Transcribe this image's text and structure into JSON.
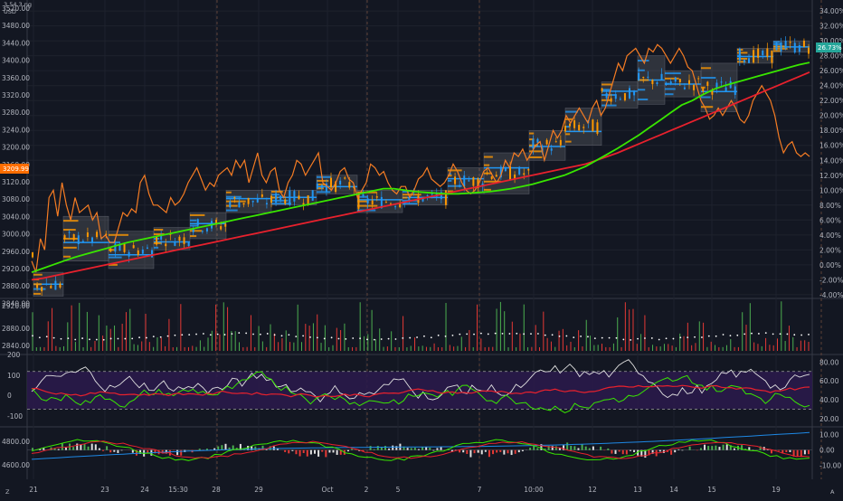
{
  "header": {
    "symbol_label": "3.54.3 ng",
    "currency": "USD"
  },
  "colors": {
    "background": "#131722",
    "grid": "#1e222d",
    "separator": "#363a45",
    "orange_line": "#f57c23",
    "green_ma": "#39e600",
    "red_ma": "#e8212d",
    "candle_up": "#26a69a",
    "candle_blue": "#2196f3",
    "candle_orange": "#ff9800",
    "volume_green": "#4caf50",
    "volume_red": "#e53935",
    "rsi_band": "#2a1a4a",
    "rsi_white": "#e0e0e0",
    "macd_blue": "#1e88e5",
    "badge_orange": "#ff6d00",
    "badge_teal": "#26a69a",
    "session_line": "#5d4037"
  },
  "icons": {
    "bottom_left": "z-icon",
    "bottom_right": "auto-scale-icon"
  },
  "corner_labels": {
    "left": "Z",
    "right": "A"
  },
  "chart_data": [
    {
      "name": "price-panel",
      "type": "line",
      "left_axis_ticks": [
        "3520.00",
        "3480.00",
        "3440.00",
        "3400.00",
        "3360.00",
        "3320.00",
        "3280.00",
        "3240.00",
        "3200.00",
        "3160.00",
        "3120.00",
        "3080.00",
        "3040.00",
        "3000.00",
        "2960.00",
        "2920.00",
        "2880.00",
        "2840.00"
      ],
      "right_axis_ticks": [
        "34.00%",
        "32.00%",
        "30.00%",
        "28.00%",
        "26.00%",
        "24.00%",
        "22.00%",
        "20.00%",
        "18.00%",
        "16.00%",
        "14.00%",
        "12.00%",
        "10.00%",
        "8.00%",
        "6.00%",
        "4.00%",
        "2.00%",
        "0.00%",
        "-2.00%",
        "-4.00%"
      ],
      "ylim_left": [
        2830,
        3535
      ],
      "ylim_right": [
        -4.5,
        34.5
      ],
      "price_badge": "3209.99",
      "percent_badge": "26.73%",
      "series": [
        {
          "key": "orange",
          "values": [
            0.5,
            -1,
            3.5,
            2,
            9,
            10,
            6.5,
            11,
            8,
            6,
            9,
            7,
            7.5,
            8,
            6,
            7,
            3.5,
            4,
            3,
            3,
            5,
            7,
            6.5,
            7.5,
            7,
            11,
            12,
            9.5,
            8,
            8,
            7.5,
            7,
            9,
            8,
            8.5,
            9.5,
            11,
            12,
            13,
            11.5,
            10,
            11,
            10.5,
            12,
            12.5,
            13,
            12,
            14,
            13,
            14,
            11,
            13,
            15,
            12,
            11,
            12.5,
            13,
            10,
            9,
            11,
            12,
            14,
            13.5,
            12,
            13,
            14,
            15,
            11,
            10.5,
            10,
            11,
            12.5,
            13,
            11.5,
            11,
            9,
            10,
            11,
            13.5,
            13,
            12,
            12.5,
            11,
            10,
            9.5,
            10.5,
            10.5,
            9,
            10,
            11.5,
            12,
            13,
            11.5,
            11,
            10.5,
            11,
            12,
            13.5,
            12.5,
            11,
            10,
            9.5,
            10,
            11,
            12.5,
            13,
            12,
            11,
            12,
            14,
            13,
            15,
            14.5,
            15.5,
            14,
            15,
            16,
            16.5,
            14,
            16,
            18,
            17,
            18,
            20,
            19,
            20,
            21,
            20,
            19,
            21,
            22,
            20,
            21,
            23,
            25,
            27,
            26,
            28,
            28.5,
            29,
            28,
            27,
            29,
            28.5,
            29.5,
            29,
            28,
            27,
            28,
            29,
            28,
            26.5,
            26,
            24,
            22,
            21,
            19.5,
            20,
            21,
            20,
            21,
            22,
            21,
            19.5,
            19,
            20,
            22,
            23,
            24,
            23,
            22,
            20,
            17,
            15,
            16,
            16.5,
            15,
            14.5,
            15,
            14.5
          ]
        },
        {
          "key": "green",
          "values": [
            -1,
            -0.5,
            0,
            0.5,
            1,
            1.4,
            1.8,
            2.2,
            2.6,
            3,
            3.3,
            3.6,
            3.9,
            4.2,
            4.5,
            4.8,
            5.1,
            5.4,
            5.7,
            6,
            6.3,
            6.6,
            6.9,
            7.2,
            7.5,
            7.8,
            8.1,
            8.4,
            8.7,
            9,
            9.3,
            9.6,
            9.9,
            10.2,
            10.2,
            10,
            9.8,
            9.7,
            9.6,
            9.5,
            9.5,
            9.6,
            9.7,
            9.8,
            10,
            10.2,
            10.5,
            10.8,
            11.2,
            11.6,
            12,
            12.6,
            13.2,
            14,
            14.8,
            15.6,
            16.5,
            17.4,
            18.4,
            19.4,
            20.4,
            21.4,
            22,
            22.8,
            23.5,
            24,
            24.4,
            24.8,
            25.2,
            25.6,
            26,
            26.4,
            26.8,
            27.1
          ]
        },
        {
          "key": "red",
          "values": [
            -2,
            -1.8,
            -1.5,
            -1.2,
            -0.9,
            -0.6,
            -0.3,
            0,
            0.3,
            0.6,
            0.9,
            1.2,
            1.5,
            1.8,
            2.1,
            2.4,
            2.7,
            3,
            3.3,
            3.6,
            3.9,
            4.2,
            4.5,
            4.8,
            5.1,
            5.4,
            5.7,
            6,
            6.3,
            6.6,
            6.9,
            7.2,
            7.5,
            7.8,
            8.1,
            8.4,
            8.7,
            9,
            9.3,
            9.6,
            9.9,
            10.2,
            10.5,
            10.8,
            11.1,
            11.4,
            11.7,
            12,
            12.3,
            12.6,
            12.9,
            13.2,
            13.5,
            14,
            14.5,
            15,
            15.6,
            16.2,
            16.8,
            17.4,
            18,
            18.6,
            19.2,
            19.8,
            20.4,
            21,
            21.6,
            22.2,
            22.8,
            23.4,
            24,
            24.6,
            25.2,
            25.8
          ]
        }
      ],
      "profile_boxes": [
        {
          "x0": 0.2,
          "x1": 3.5,
          "hi": -1,
          "lo": -4.2
        },
        {
          "x0": 3.5,
          "x1": 8.5,
          "hi": 6.5,
          "lo": 0.5
        },
        {
          "x0": 8.5,
          "x1": 13.5,
          "hi": 4.5,
          "lo": -0.5
        },
        {
          "x0": 13.5,
          "x1": 17.5,
          "hi": 5,
          "lo": 2
        },
        {
          "x0": 17.5,
          "x1": 21.5,
          "hi": 7,
          "lo": 3.5
        },
        {
          "x0": 21.5,
          "x1": 26.5,
          "hi": 10,
          "lo": 7
        },
        {
          "x0": 26.5,
          "x1": 31.5,
          "hi": 10,
          "lo": 8
        },
        {
          "x0": 31.5,
          "x1": 36,
          "hi": 12,
          "lo": 9.5
        },
        {
          "x0": 36,
          "x1": 41,
          "hi": 10,
          "lo": 7
        },
        {
          "x0": 41,
          "x1": 46,
          "hi": 10,
          "lo": 8
        },
        {
          "x0": 46,
          "x1": 50,
          "hi": 13,
          "lo": 9.5
        },
        {
          "x0": 50,
          "x1": 55,
          "hi": 15,
          "lo": 9.5
        },
        {
          "x0": 55,
          "x1": 59,
          "hi": 18,
          "lo": 14
        },
        {
          "x0": 59,
          "x1": 63,
          "hi": 21,
          "lo": 16
        },
        {
          "x0": 63,
          "x1": 67,
          "hi": 24.5,
          "lo": 21
        },
        {
          "x0": 67,
          "x1": 70,
          "hi": 28,
          "lo": 21.5
        },
        {
          "x0": 70,
          "x1": 74,
          "hi": 26,
          "lo": 22.5
        },
        {
          "x0": 74,
          "x1": 78,
          "hi": 27,
          "lo": 20.5
        },
        {
          "x0": 78,
          "x1": 82,
          "hi": 29,
          "lo": 27
        },
        {
          "x0": 82,
          "x1": 86,
          "hi": 30,
          "lo": 28.5
        }
      ]
    },
    {
      "name": "volume-panel",
      "type": "bar",
      "axis_ticks": [
        "2920.00",
        "2880.00",
        "2840.00"
      ],
      "ylim": [
        0,
        1
      ]
    },
    {
      "name": "rsi-panel",
      "type": "line",
      "left_axis_ticks": [
        "200",
        "100",
        "0",
        "-100"
      ],
      "right_axis_ticks": [
        "80.00",
        "60.00",
        "40.00",
        "20.00"
      ],
      "ylim_right": [
        15,
        88
      ],
      "band": [
        30,
        70
      ]
    },
    {
      "name": "macd-panel",
      "type": "bar",
      "left_axis_ticks": [
        "4800.00",
        "4600.00"
      ],
      "right_axis_ticks": [
        "10.00",
        "0.00",
        "-10.00"
      ],
      "ylim_right": [
        -16,
        15
      ]
    }
  ],
  "x_axis_labels": [
    "21",
    "23",
    "24",
    "15:30",
    "28",
    "29",
    "Oct",
    "2",
    "5",
    "7",
    "10:00",
    "12",
    "13",
    "14",
    "15",
    "19"
  ]
}
